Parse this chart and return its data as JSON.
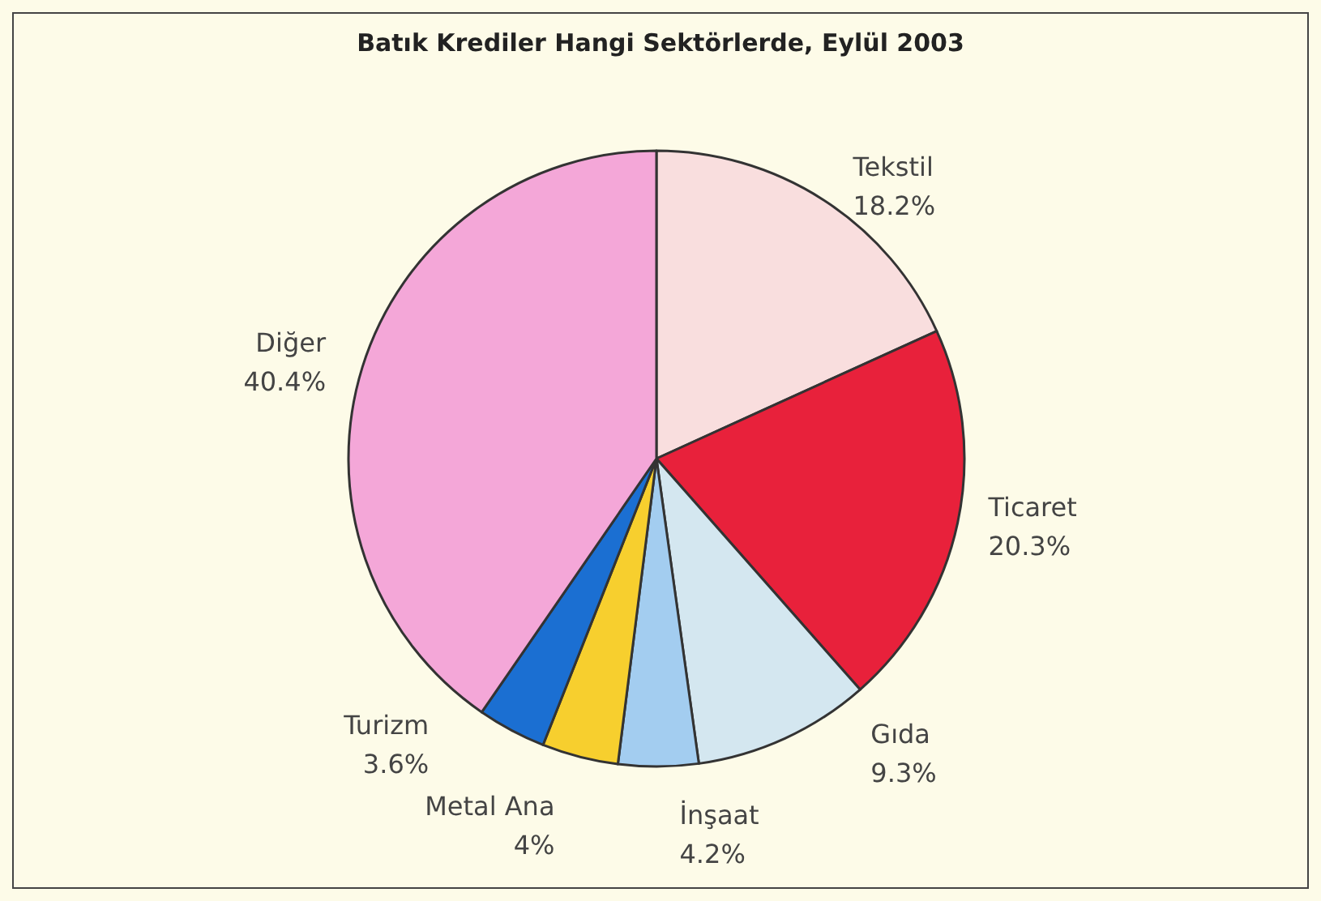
{
  "chart_data": {
    "type": "pie",
    "title": "Batık Krediler Hangi Sektörlerde, Eylül 2003",
    "categories": [
      "Tekstil",
      "Ticaret",
      "Gıda",
      "İnşaat",
      "Metal Ana",
      "Turizm",
      "Diğer"
    ],
    "values": [
      18.2,
      20.3,
      9.3,
      4.2,
      4,
      3.6,
      40.4
    ],
    "value_labels": [
      "18.2%",
      "20.3%",
      "9.3%",
      "4.2%",
      "4%",
      "3.6%",
      "40.4%"
    ],
    "colors": [
      "#f9dede",
      "#e8213b",
      "#d4e7f0",
      "#a3cdf0",
      "#f7cf2e",
      "#1b6fd2",
      "#f4a7d8"
    ]
  }
}
